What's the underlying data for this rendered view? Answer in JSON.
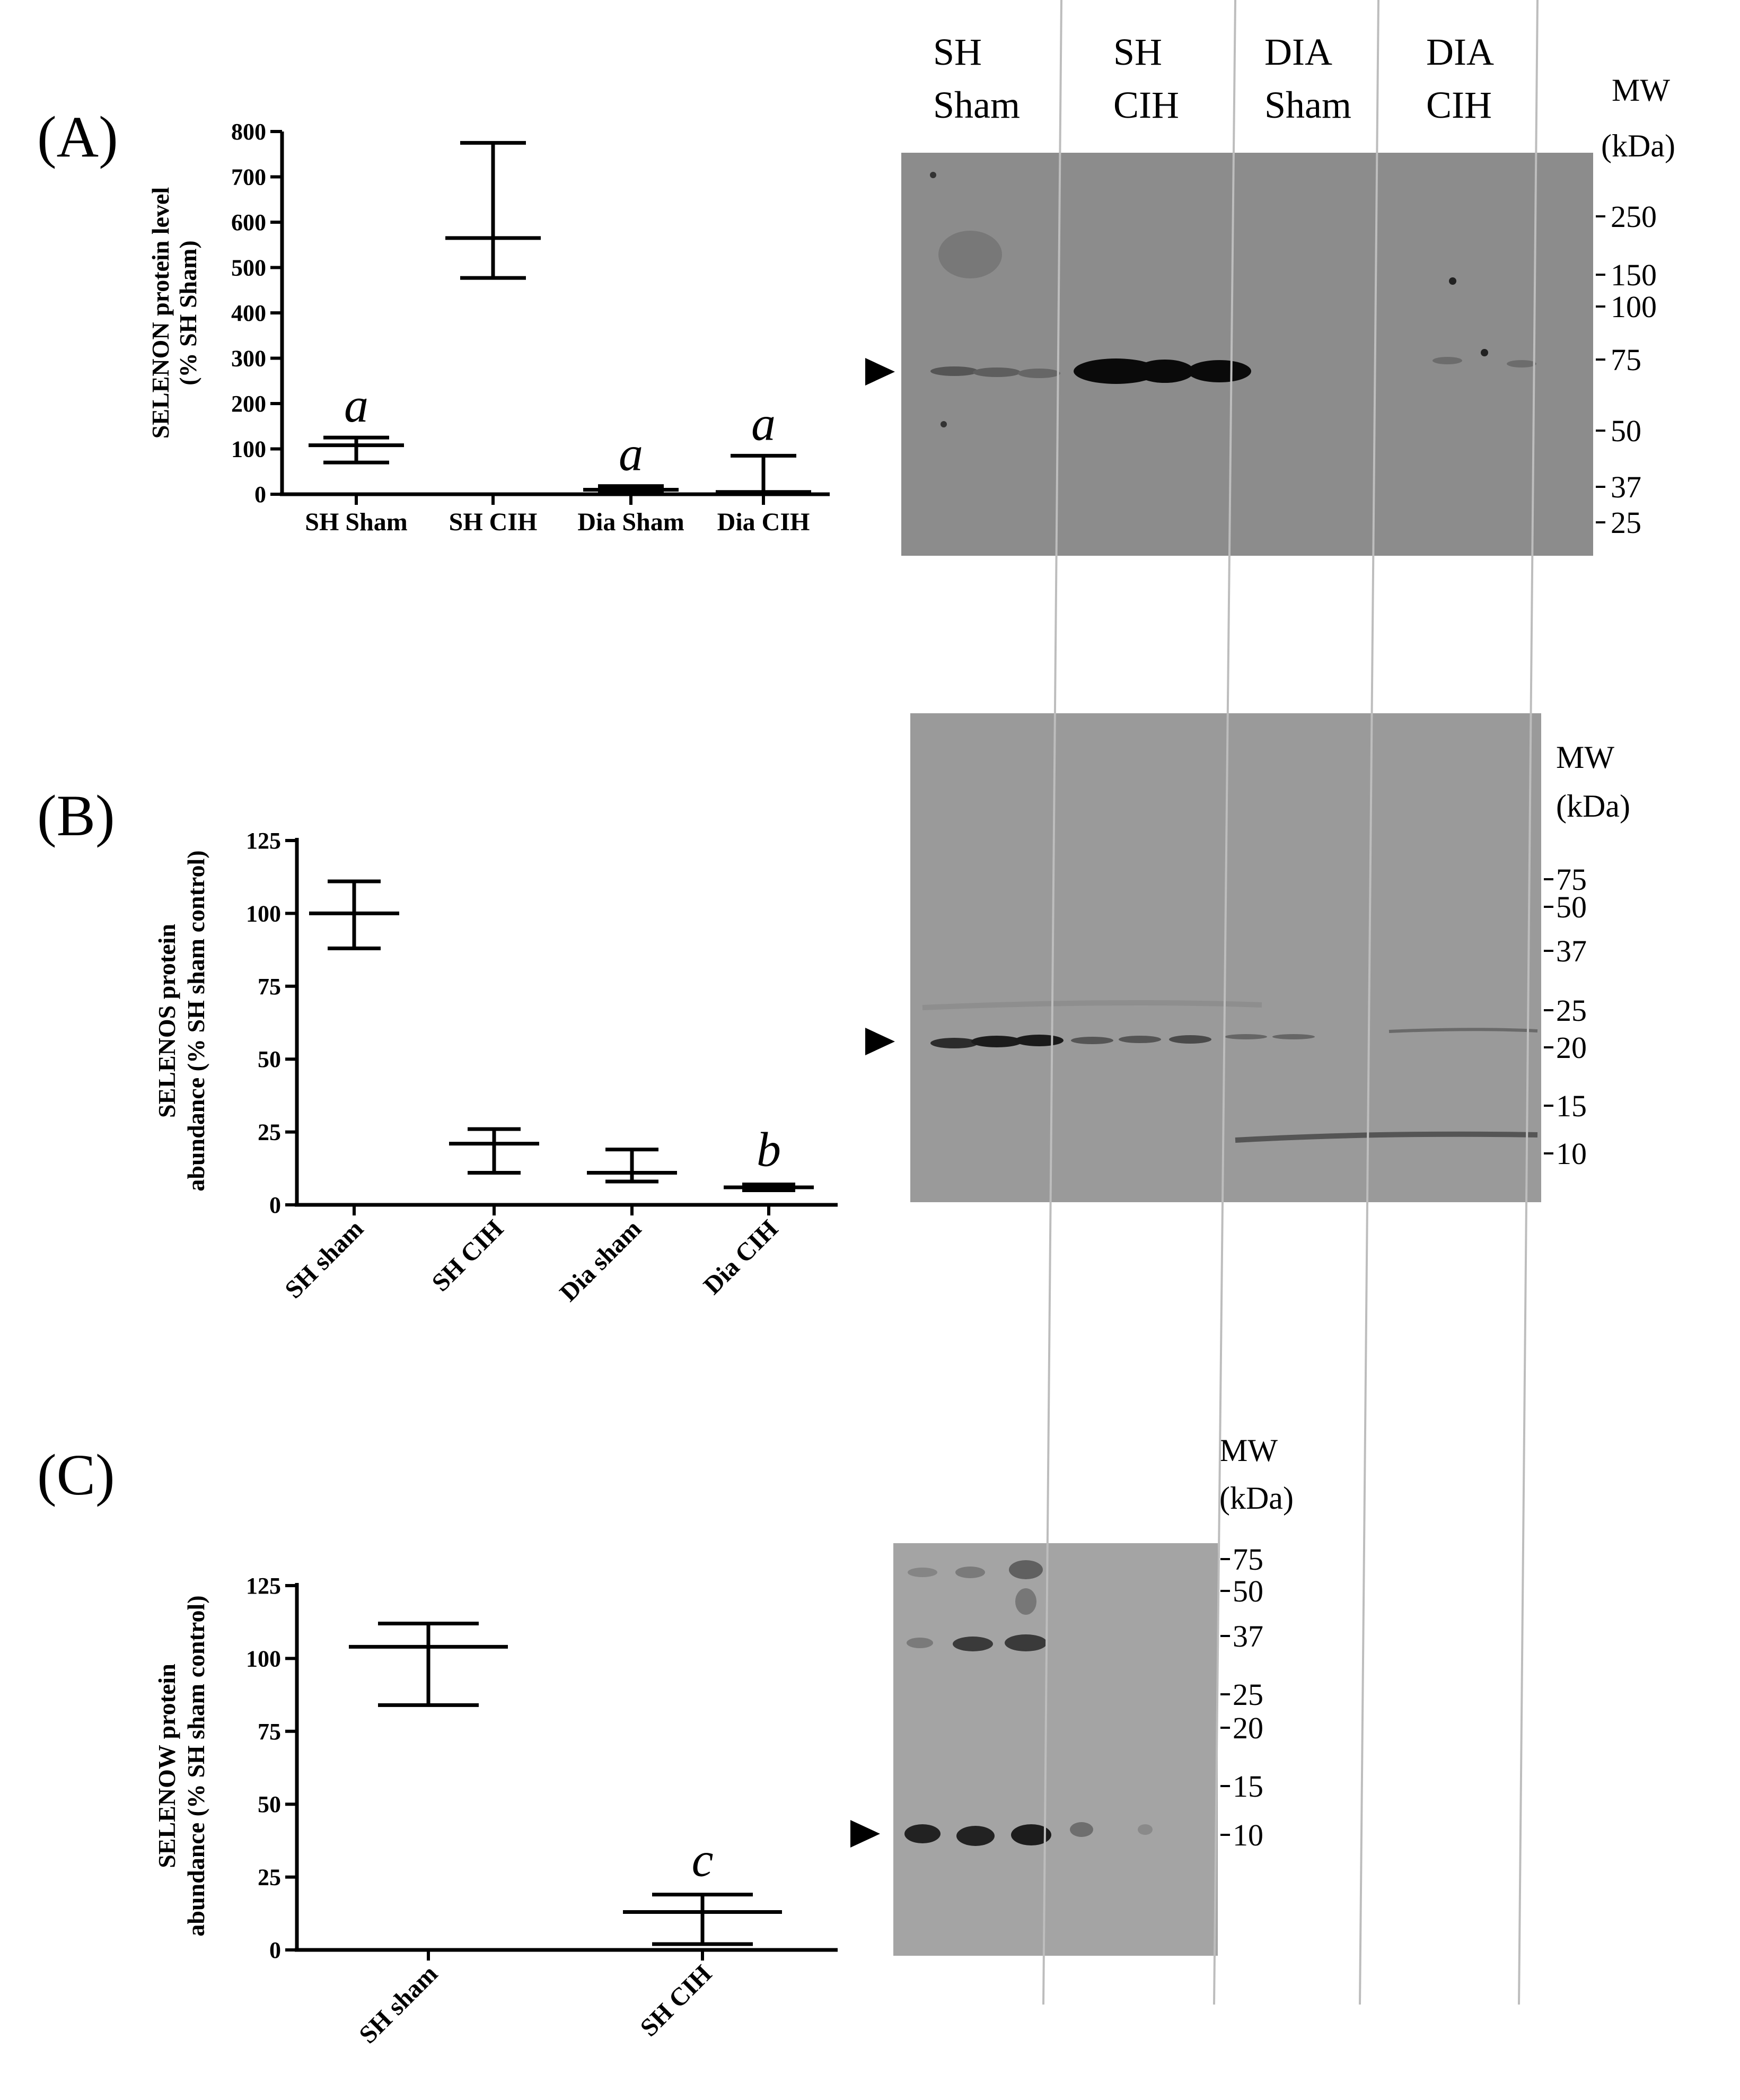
{
  "figure": {
    "lanes": [
      {
        "line1": "SH",
        "line2": "Sham"
      },
      {
        "line1": "SH",
        "line2": "CIH"
      },
      {
        "line1": "DIA",
        "line2": "Sham"
      },
      {
        "line1": "DIA",
        "line2": "CIH"
      }
    ],
    "mw_title_1": "MW",
    "mw_title_2": "(kDa)"
  },
  "chart_data": [
    {
      "panel": "(A)",
      "type": "scatter",
      "style": "mean-with-error-bars",
      "ylabel_line1": "SELENON protein level",
      "ylabel_line2": "(% SH Sham)",
      "categories": [
        "SH Sham",
        "SH CIH",
        "Dia Sham",
        "Dia CIH"
      ],
      "ylim": [
        0,
        800
      ],
      "yticks": [
        0,
        100,
        200,
        300,
        400,
        500,
        600,
        700,
        800
      ],
      "mean": [
        108,
        565,
        10,
        5
      ],
      "upper": [
        125,
        775,
        18,
        85
      ],
      "lower": [
        70,
        477,
        5,
        0
      ],
      "significance": [
        "a",
        "",
        "a",
        "a"
      ],
      "blot_markers": [
        "250",
        "150",
        "100",
        "75",
        "50",
        "37",
        "25"
      ],
      "blot_marker_kda": [
        250,
        150,
        100,
        75,
        50,
        37,
        25
      ]
    },
    {
      "panel": "(B)",
      "type": "scatter",
      "style": "mean-with-error-bars",
      "ylabel_line1": "SELENOS protein",
      "ylabel_line2": "abundance (% SH sham control)",
      "categories": [
        "SH sham",
        "SH CIH",
        "Dia sham",
        "Dia CIH"
      ],
      "ylim": [
        0,
        125
      ],
      "yticks": [
        0,
        25,
        50,
        75,
        100,
        125
      ],
      "mean": [
        100,
        21,
        11,
        6
      ],
      "upper": [
        111,
        26,
        19,
        7
      ],
      "lower": [
        88,
        11,
        8,
        5
      ],
      "significance": [
        "",
        "",
        "",
        "b"
      ],
      "blot_markers": [
        "75",
        "50",
        "37",
        "25",
        "20",
        "15",
        "10"
      ],
      "blot_marker_kda": [
        75,
        50,
        37,
        25,
        20,
        15,
        10
      ]
    },
    {
      "panel": "(C)",
      "type": "scatter",
      "style": "mean-with-error-bars",
      "ylabel_line1": "SELENOW protein",
      "ylabel_line2": "abundance (% SH sham control)",
      "categories": [
        "SH sham",
        "SH CIH"
      ],
      "ylim": [
        0,
        125
      ],
      "yticks": [
        0,
        25,
        50,
        75,
        100,
        125
      ],
      "mean": [
        104,
        13
      ],
      "upper": [
        112,
        19
      ],
      "lower": [
        84,
        2
      ],
      "significance": [
        "",
        "c"
      ],
      "blot_markers": [
        "75",
        "50",
        "37",
        "25",
        "20",
        "15",
        "10"
      ],
      "blot_marker_kda": [
        75,
        50,
        37,
        25,
        20,
        15,
        10
      ]
    }
  ]
}
